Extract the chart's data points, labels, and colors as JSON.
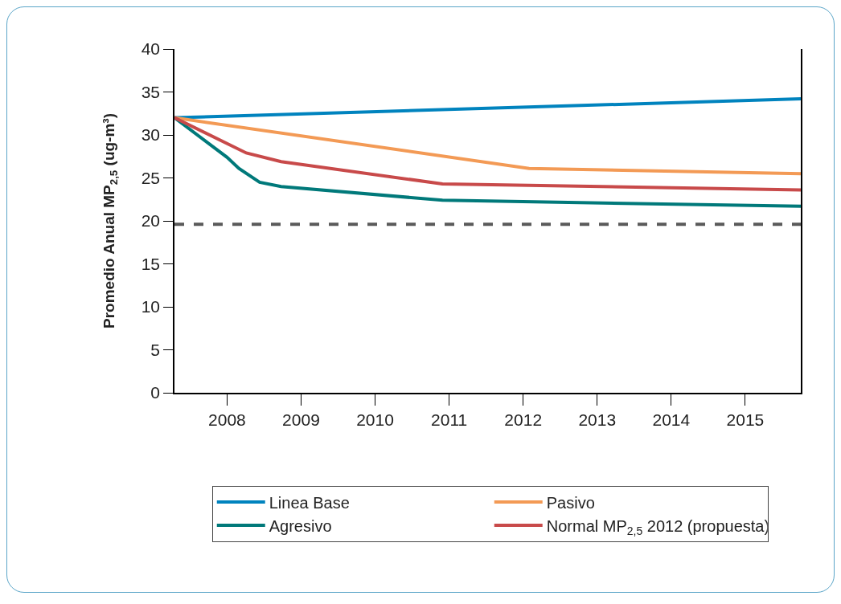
{
  "chart_data": {
    "type": "line",
    "ylabel": "Promedio Anual MP$_{2,5}$ (ug-m³)",
    "xlim": [
      2007.29,
      2015.75
    ],
    "xticks": [
      2008,
      2009,
      2010,
      2011,
      2012,
      2013,
      2014,
      2015
    ],
    "ylim": [
      0,
      40
    ],
    "yticks": [
      0,
      5,
      10,
      15,
      20,
      25,
      30,
      35,
      40
    ],
    "grid": false,
    "legend": "bottom",
    "marker": "none",
    "line_style": "solid",
    "series": [
      {
        "name": "Linea Base",
        "color": "#0083be",
        "x": [
          2007.29,
          2015.75
        ],
        "values": [
          32.0,
          34.2
        ]
      },
      {
        "name": "Pasivo",
        "color": "#f39a55",
        "x": [
          2007.29,
          2012.08,
          2015.75
        ],
        "values": [
          32.0,
          26.1,
          25.5
        ]
      },
      {
        "name": "Agresivo",
        "color": "#00797a",
        "x": [
          2007.29,
          2008.0,
          2008.16,
          2008.44,
          2008.73,
          2010.91,
          2015.75
        ],
        "values": [
          32.0,
          27.4,
          26.1,
          24.5,
          24.0,
          22.4,
          21.7
        ]
      },
      {
        "name": "Normal MP$_{2,5}$ 2012 (propuesta)",
        "color": "#c84a4a",
        "x": [
          2007.29,
          2008.26,
          2008.73,
          2010.91,
          2015.75
        ],
        "values": [
          32.0,
          27.9,
          26.9,
          24.3,
          23.6
        ]
      }
    ],
    "ref_lines": [
      {
        "axis": "y",
        "value": 19.6,
        "label": null,
        "color": "#5a5a5a",
        "line_style": "dashed"
      }
    ]
  }
}
